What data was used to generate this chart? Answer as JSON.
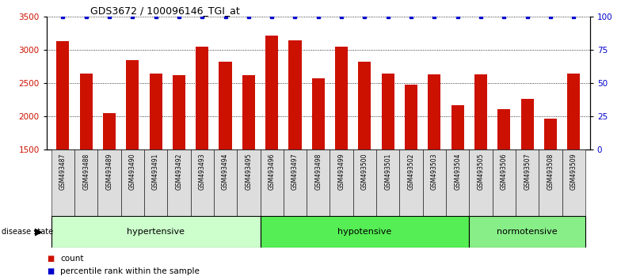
{
  "title": "GDS3672 / 100096146_TGI_at",
  "samples": [
    "GSM493487",
    "GSM493488",
    "GSM493489",
    "GSM493490",
    "GSM493491",
    "GSM493492",
    "GSM493493",
    "GSM493494",
    "GSM493495",
    "GSM493496",
    "GSM493497",
    "GSM493498",
    "GSM493499",
    "GSM493500",
    "GSM493501",
    "GSM493502",
    "GSM493503",
    "GSM493504",
    "GSM493505",
    "GSM493506",
    "GSM493507",
    "GSM493508",
    "GSM493509"
  ],
  "counts": [
    3130,
    2650,
    2050,
    2850,
    2650,
    2620,
    3050,
    2830,
    2620,
    3220,
    3150,
    2570,
    3050,
    2830,
    2650,
    2480,
    2630,
    2170,
    2630,
    2110,
    2270,
    1970,
    2650
  ],
  "percentile_ranks": [
    100,
    100,
    100,
    100,
    100,
    100,
    100,
    100,
    100,
    100,
    100,
    100,
    100,
    100,
    100,
    100,
    100,
    100,
    100,
    100,
    100,
    100,
    100
  ],
  "groups": [
    {
      "name": "hypertensive",
      "start": 0,
      "end": 8,
      "color": "#ccffcc",
      "edge_color": "#000000"
    },
    {
      "name": "hypotensive",
      "start": 9,
      "end": 17,
      "color": "#55ee55",
      "edge_color": "#000000"
    },
    {
      "name": "normotensive",
      "start": 18,
      "end": 22,
      "color": "#88ee88",
      "edge_color": "#000000"
    }
  ],
  "ylim_left": [
    1500,
    3500
  ],
  "yticks_left": [
    1500,
    2000,
    2500,
    3000,
    3500
  ],
  "ylim_right": [
    0,
    100
  ],
  "yticks_right": [
    0,
    25,
    50,
    75,
    100
  ],
  "bar_color": "#cc1100",
  "dot_color": "#0000cc",
  "bar_width": 0.55,
  "background_color": "#ffffff",
  "xtick_bg_color": "#dddddd",
  "legend_count_color": "#cc1100",
  "legend_dot_color": "#0000cc"
}
